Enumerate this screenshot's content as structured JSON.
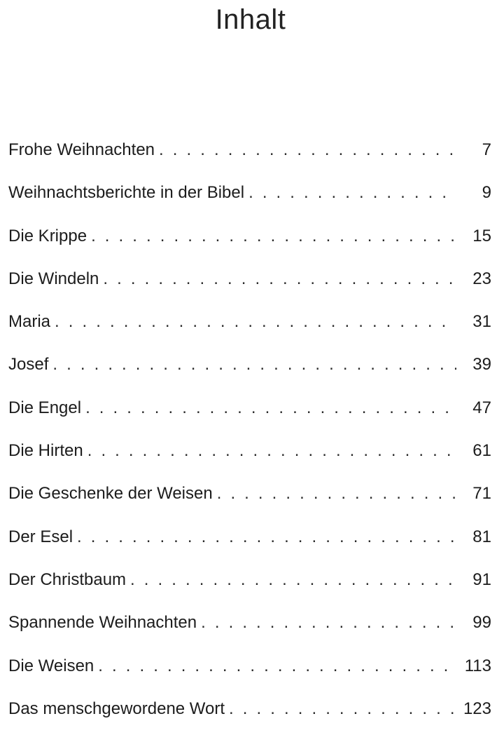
{
  "heading": "Inhalt",
  "toc": [
    {
      "title": "Frohe Weihnachten",
      "page": "7"
    },
    {
      "title": "Weihnachtsberichte in der Bibel",
      "page": "9"
    },
    {
      "title": "Die Krippe",
      "page": "15"
    },
    {
      "title": "Die Windeln",
      "page": "23"
    },
    {
      "title": "Maria",
      "page": "31"
    },
    {
      "title": "Josef",
      "page": "39"
    },
    {
      "title": "Die Engel",
      "page": "47"
    },
    {
      "title": "Die Hirten",
      "page": "61"
    },
    {
      "title": "Die Geschenke der Weisen",
      "page": "71"
    },
    {
      "title": "Der Esel",
      "page": "81"
    },
    {
      "title": "Der Christbaum",
      "page": "91"
    },
    {
      "title": "Spannende Weihnachten",
      "page": "99"
    },
    {
      "title": "Die Weisen",
      "page": "113"
    },
    {
      "title": "Das menschgewordene Wort",
      "page": "123"
    }
  ]
}
